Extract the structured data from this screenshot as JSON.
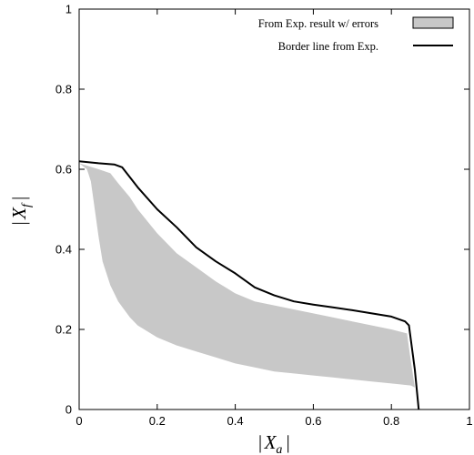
{
  "chart_data": {
    "type": "area",
    "title": "",
    "xlabel": "| X_a |",
    "ylabel": "| X_f |",
    "xlabel_parts": {
      "left": "|",
      "symbol": "X",
      "sub": "a",
      "right": "|"
    },
    "ylabel_parts": {
      "left": "|",
      "symbol": "X",
      "sub": "f",
      "right": "|"
    },
    "xlim": [
      0,
      1
    ],
    "ylim": [
      0,
      1
    ],
    "xticks": [
      "0",
      "0.2",
      "0.4",
      "0.6",
      "0.8",
      "1"
    ],
    "yticks": [
      "0",
      "0.2",
      "0.4",
      "0.6",
      "0.8",
      "1"
    ],
    "grid": false,
    "legend_position": "top-right",
    "series": [
      {
        "name": "From Exp. result w/ errors",
        "kind": "band",
        "color": "#c8c8c8",
        "upper": [
          [
            0.0,
            0.615
          ],
          [
            0.05,
            0.6
          ],
          [
            0.08,
            0.59
          ],
          [
            0.1,
            0.565
          ],
          [
            0.13,
            0.53
          ],
          [
            0.15,
            0.5
          ],
          [
            0.2,
            0.44
          ],
          [
            0.25,
            0.39
          ],
          [
            0.3,
            0.355
          ],
          [
            0.35,
            0.32
          ],
          [
            0.4,
            0.29
          ],
          [
            0.45,
            0.27
          ],
          [
            0.5,
            0.26
          ],
          [
            0.55,
            0.25
          ],
          [
            0.6,
            0.24
          ],
          [
            0.65,
            0.23
          ],
          [
            0.7,
            0.22
          ],
          [
            0.75,
            0.21
          ],
          [
            0.8,
            0.2
          ],
          [
            0.84,
            0.19
          ],
          [
            0.85,
            0.12
          ],
          [
            0.86,
            0.055
          ]
        ],
        "lower": [
          [
            0.0,
            0.615
          ],
          [
            0.02,
            0.6
          ],
          [
            0.03,
            0.57
          ],
          [
            0.04,
            0.5
          ],
          [
            0.05,
            0.43
          ],
          [
            0.06,
            0.37
          ],
          [
            0.08,
            0.31
          ],
          [
            0.1,
            0.27
          ],
          [
            0.13,
            0.23
          ],
          [
            0.15,
            0.21
          ],
          [
            0.2,
            0.18
          ],
          [
            0.25,
            0.16
          ],
          [
            0.3,
            0.145
          ],
          [
            0.35,
            0.13
          ],
          [
            0.4,
            0.115
          ],
          [
            0.45,
            0.105
          ],
          [
            0.5,
            0.095
          ],
          [
            0.55,
            0.09
          ],
          [
            0.6,
            0.085
          ],
          [
            0.65,
            0.08
          ],
          [
            0.7,
            0.075
          ],
          [
            0.75,
            0.07
          ],
          [
            0.8,
            0.065
          ],
          [
            0.85,
            0.06
          ],
          [
            0.86,
            0.055
          ]
        ]
      },
      {
        "name": "Border line from Exp.",
        "kind": "line",
        "color": "#000000",
        "points": [
          [
            0.0,
            0.62
          ],
          [
            0.05,
            0.615
          ],
          [
            0.09,
            0.612
          ],
          [
            0.11,
            0.605
          ],
          [
            0.13,
            0.58
          ],
          [
            0.15,
            0.555
          ],
          [
            0.2,
            0.5
          ],
          [
            0.25,
            0.455
          ],
          [
            0.3,
            0.405
          ],
          [
            0.35,
            0.37
          ],
          [
            0.4,
            0.34
          ],
          [
            0.45,
            0.305
          ],
          [
            0.5,
            0.285
          ],
          [
            0.55,
            0.27
          ],
          [
            0.6,
            0.262
          ],
          [
            0.65,
            0.255
          ],
          [
            0.7,
            0.248
          ],
          [
            0.75,
            0.24
          ],
          [
            0.8,
            0.232
          ],
          [
            0.835,
            0.22
          ],
          [
            0.845,
            0.21
          ],
          [
            0.86,
            0.1
          ],
          [
            0.87,
            0.0
          ]
        ]
      }
    ]
  }
}
